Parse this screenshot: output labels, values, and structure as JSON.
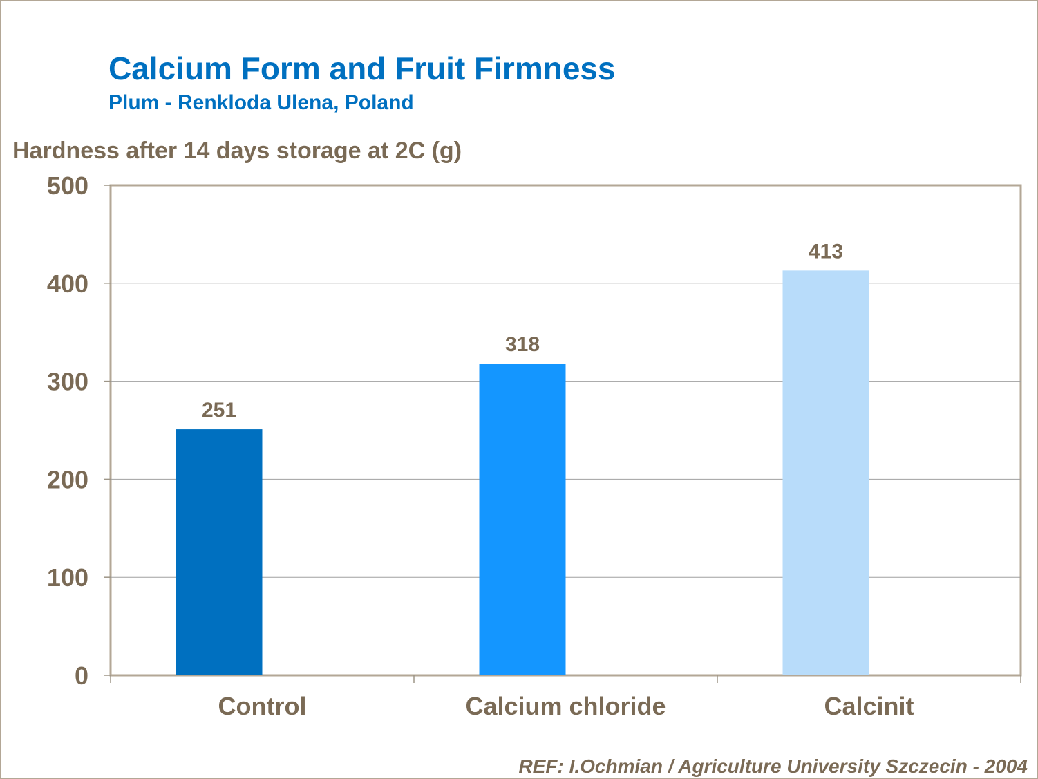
{
  "chart_data": {
    "type": "bar",
    "title": "Calcium Form and Fruit Firmness",
    "subtitle": "Plum - Renkloda Ulena, Poland",
    "y_label": "Hardness after 14 days storage at 2C (g)",
    "categories": [
      "Control",
      "Calcium chloride",
      "Calcinit"
    ],
    "values": [
      251,
      318,
      413
    ],
    "colors": [
      "#0070c0",
      "#1496ff",
      "#b8dcfa"
    ],
    "ylim": [
      0,
      500
    ],
    "yticks": [
      0,
      100,
      200,
      300,
      400,
      500
    ],
    "grid": true,
    "source": "REF: I.Ochmian / Agriculture University Szczecin - 2004"
  }
}
